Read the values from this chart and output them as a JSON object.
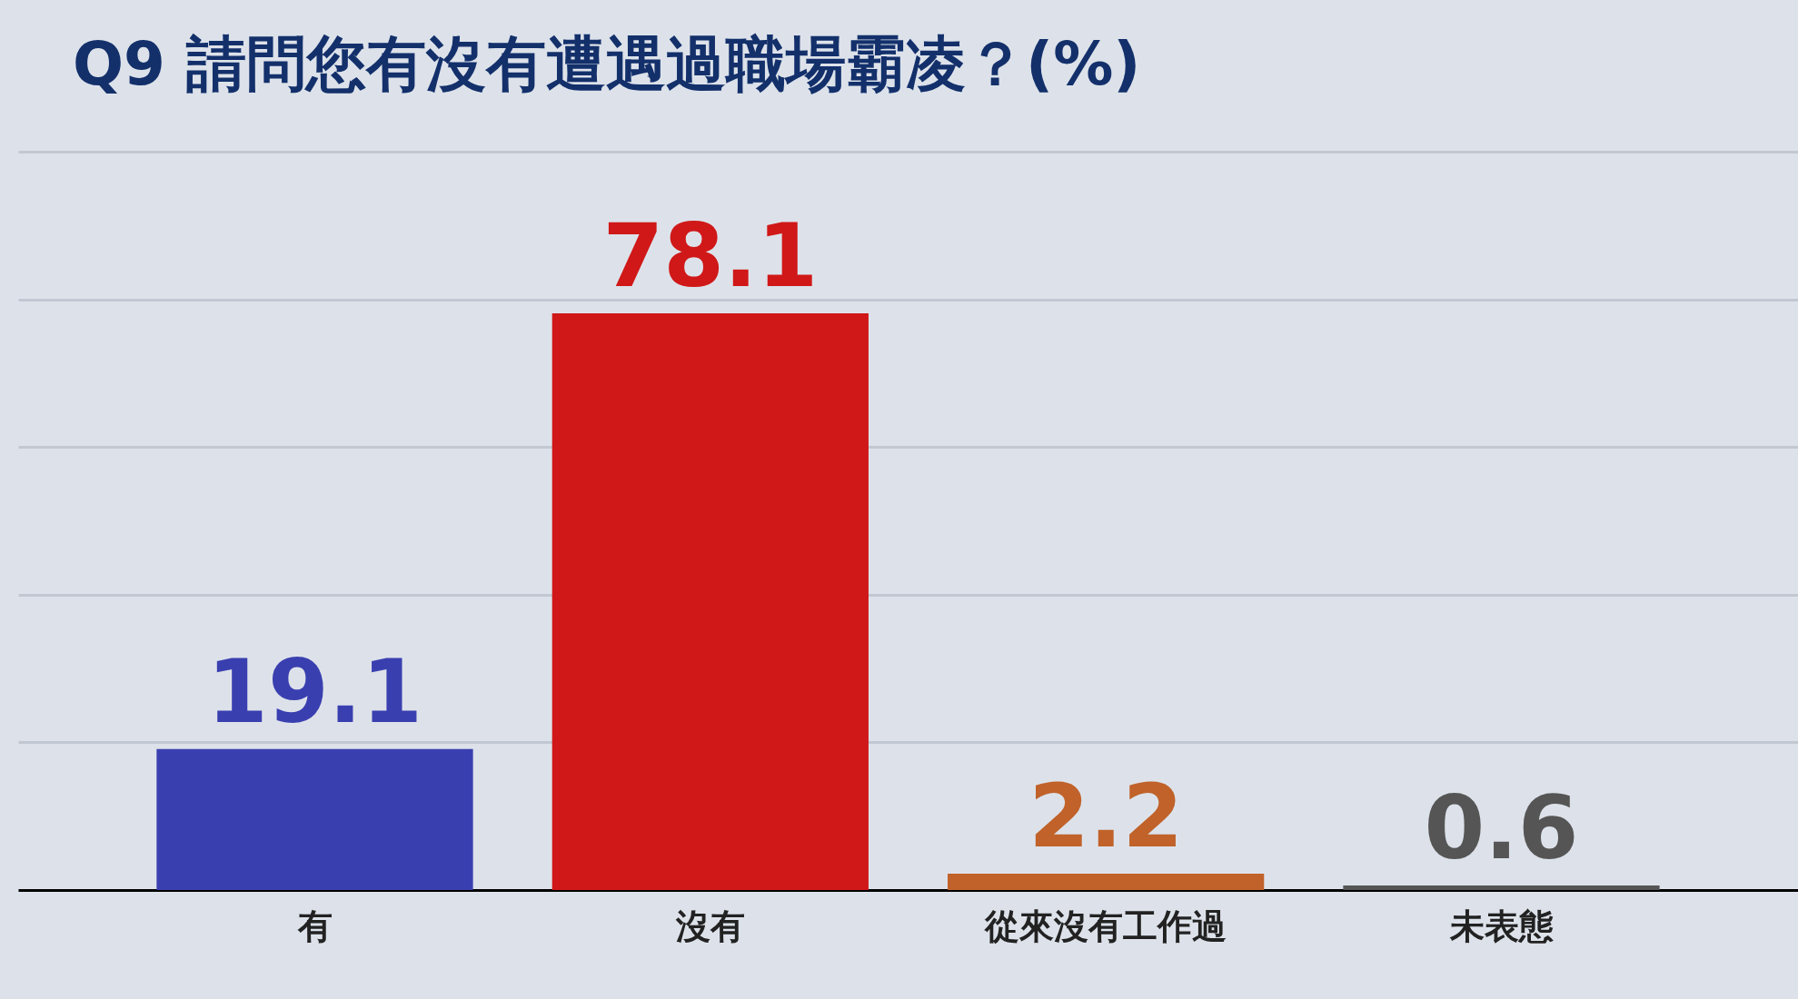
{
  "chart_data": {
    "type": "bar",
    "title": "Q9 請問您有沒有遭遇過職場霸凌？(%)",
    "categories": [
      "有",
      "沒有",
      "從來沒有工作過",
      "未表態"
    ],
    "values": [
      19.1,
      78.1,
      2.2,
      0.6
    ],
    "colors": [
      "#3a3fb0",
      "#d01818",
      "#c0622a",
      "#555555"
    ],
    "ylim": [
      0,
      100
    ],
    "yticks": [
      {
        "value": 0,
        "label": null
      },
      {
        "value": 20,
        "label": null
      },
      {
        "value": 40,
        "label": null
      },
      {
        "value": 60,
        "label": null
      },
      {
        "value": 80,
        "label": null
      },
      {
        "value": 100,
        "label": null
      }
    ],
    "tick_labels": "x",
    "grid": "y",
    "data_labels": true,
    "legend": false
  }
}
